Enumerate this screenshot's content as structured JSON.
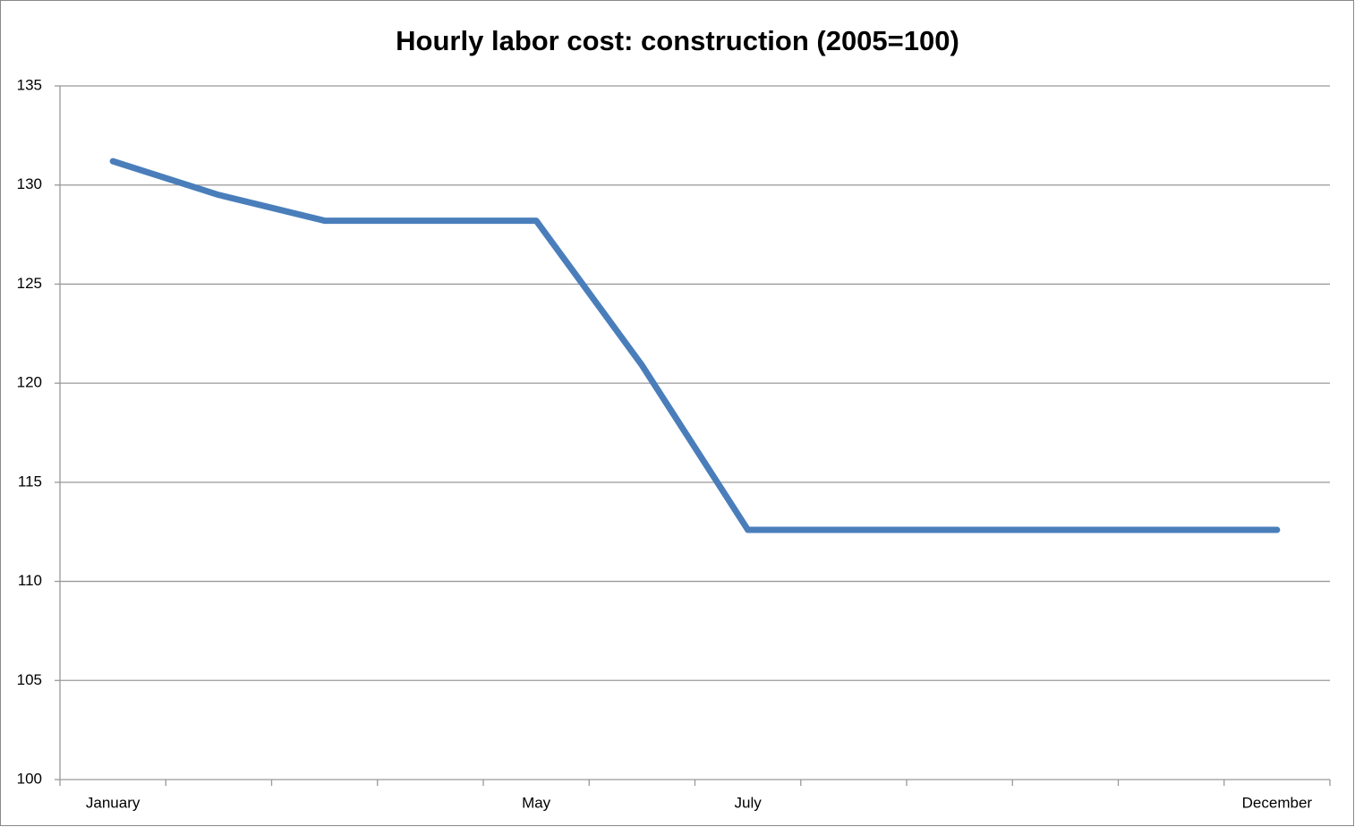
{
  "chart_data": {
    "type": "line",
    "title": "Hourly labor cost: construction (2005=100)",
    "categories": [
      "January",
      null,
      null,
      null,
      "May",
      null,
      "July",
      null,
      null,
      null,
      null,
      "December"
    ],
    "series": [
      {
        "name": "Hourly labor cost",
        "color": "#4a7ebb",
        "values": [
          131.2,
          129.5,
          128.2,
          128.2,
          128.2,
          120.9,
          112.6,
          112.6,
          112.6,
          112.6,
          112.6,
          112.6
        ]
      }
    ],
    "ylim": [
      100,
      135
    ],
    "yticks": [
      100,
      105,
      110,
      115,
      120,
      125,
      130,
      135
    ],
    "grid": true
  }
}
